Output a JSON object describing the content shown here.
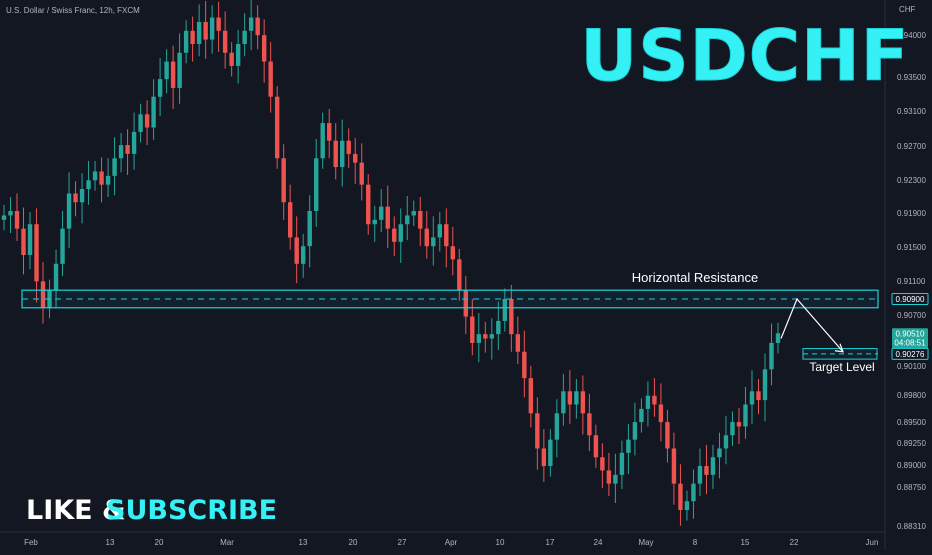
{
  "header": {
    "symbol_label": "U.S. Dollar / Swiss Franc, 12h, FXCM"
  },
  "overlay": {
    "big_title": "USDCHF",
    "cta_like": "LIKE &",
    "cta_subscribe": "SUBSCRIBE"
  },
  "colors": {
    "background": "#131722",
    "up": "#26a69a",
    "down": "#ef5350",
    "accent": "#19d3da",
    "text": "#b2b5be",
    "white": "#ffffff"
  },
  "chart_data": {
    "type": "candlestick",
    "currency_label": "CHF",
    "y_ticks": [
      "0.94000",
      "0.93500",
      "0.93100",
      "0.92700",
      "0.92300",
      "0.91900",
      "0.91500",
      "0.91100",
      "0.90700",
      "0.90100",
      "0.89800",
      "0.89500",
      "0.89250",
      "0.89000",
      "0.88750",
      "0.88310"
    ],
    "x_ticks": [
      "Feb",
      "13",
      "20",
      "Mar",
      "13",
      "20",
      "27",
      "Apr",
      "10",
      "17",
      "24",
      "May",
      "8",
      "15",
      "22",
      "Jun"
    ],
    "ylim": [
      0.8825,
      0.943
    ],
    "resistance_zone": {
      "label": "Horizontal Resistance",
      "low": 0.908,
      "high": 0.91,
      "center": 0.909,
      "price_label": "0.90900"
    },
    "target": {
      "label": "Target Level",
      "price": 0.90276,
      "price_label": "0.90276"
    },
    "current_price": {
      "price": 0.9051,
      "price_label": "0.90510",
      "countdown": "04:08:51"
    },
    "projection": {
      "start": 0.9045,
      "peak": 0.909,
      "end": 0.903,
      "direction": "up-then-down"
    },
    "candles_close": [
      0.9185,
      0.919,
      0.917,
      0.914,
      0.9175,
      0.911,
      0.908,
      0.91,
      0.913,
      0.917,
      0.921,
      0.92,
      0.9215,
      0.9225,
      0.9235,
      0.922,
      0.923,
      0.925,
      0.9265,
      0.9255,
      0.928,
      0.93,
      0.9285,
      0.932,
      0.934,
      0.936,
      0.933,
      0.937,
      0.9395,
      0.938,
      0.9405,
      0.9385,
      0.941,
      0.9395,
      0.937,
      0.9355,
      0.938,
      0.9395,
      0.941,
      0.939,
      0.936,
      0.932,
      0.925,
      0.92,
      0.916,
      0.913,
      0.915,
      0.919,
      0.925,
      0.929,
      0.927,
      0.924,
      0.927,
      0.9255,
      0.9245,
      0.922,
      0.9175,
      0.918,
      0.9195,
      0.917,
      0.9155,
      0.9175,
      0.9185,
      0.919,
      0.917,
      0.915,
      0.916,
      0.9175,
      0.915,
      0.9135,
      0.91,
      0.907,
      0.904,
      0.905,
      0.9045,
      0.905,
      0.9065,
      0.909,
      0.905,
      0.903,
      0.9,
      0.896,
      0.892,
      0.89,
      0.893,
      0.896,
      0.8985,
      0.897,
      0.8985,
      0.896,
      0.8935,
      0.891,
      0.8895,
      0.888,
      0.889,
      0.8915,
      0.893,
      0.895,
      0.8965,
      0.898,
      0.897,
      0.895,
      0.892,
      0.888,
      0.885,
      0.886,
      0.888,
      0.89,
      0.889,
      0.891,
      0.892,
      0.8935,
      0.895,
      0.8945,
      0.897,
      0.8985,
      0.8975,
      0.901,
      0.904,
      0.9051
    ]
  }
}
